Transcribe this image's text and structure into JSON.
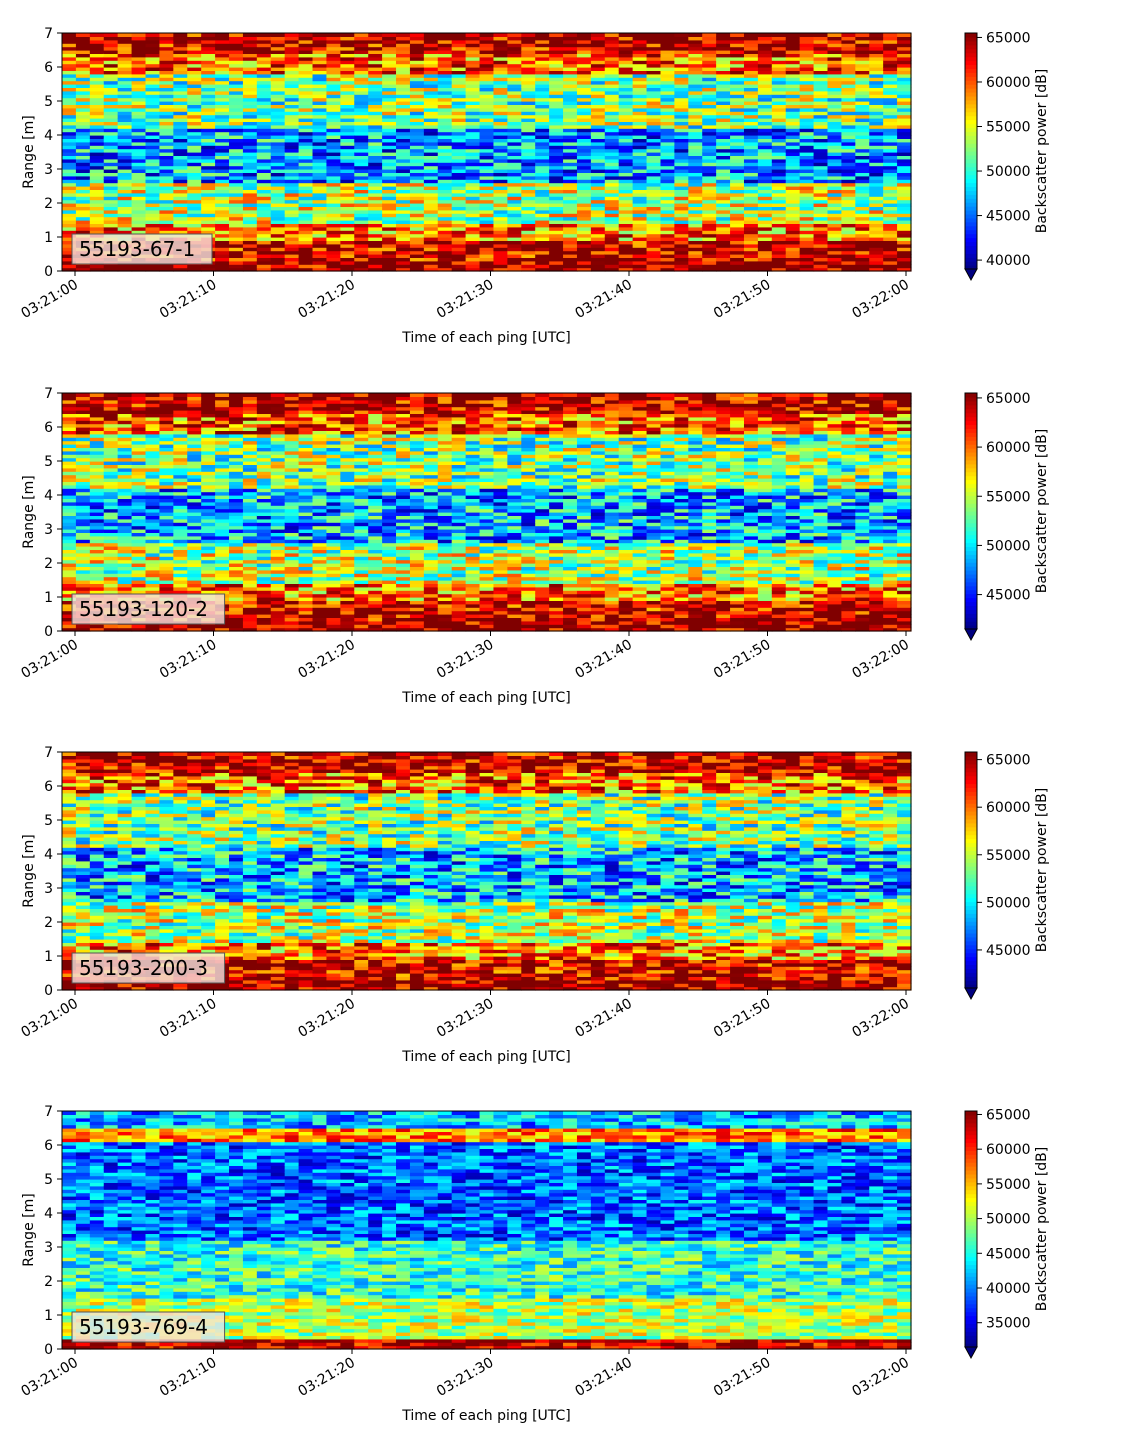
{
  "chart_data": [
    {
      "type": "heatmap",
      "label": "55193-67-1",
      "xlabel": "Time of each ping [UTC]",
      "ylabel": "Range [m]",
      "x_ticks": [
        "03:21:00",
        "03:21:10",
        "03:21:20",
        "03:21:30",
        "03:21:40",
        "03:21:50",
        "03:22:00"
      ],
      "y_ticks": [
        "0",
        "1",
        "2",
        "3",
        "4",
        "5",
        "6",
        "7"
      ],
      "ylim": [
        0,
        7
      ],
      "colorbar": {
        "label": "Backscatter power [dB]",
        "ticks": [
          "40000",
          "45000",
          "50000",
          "55000",
          "60000",
          "65000"
        ],
        "range": [
          39000,
          65500
        ],
        "extend": "min"
      }
    },
    {
      "type": "heatmap",
      "label": "55193-120-2",
      "xlabel": "Time of each ping [UTC]",
      "ylabel": "Range [m]",
      "x_ticks": [
        "03:21:00",
        "03:21:10",
        "03:21:20",
        "03:21:30",
        "03:21:40",
        "03:21:50",
        "03:22:00"
      ],
      "y_ticks": [
        "0",
        "1",
        "2",
        "3",
        "4",
        "5",
        "6",
        "7"
      ],
      "ylim": [
        0,
        7
      ],
      "colorbar": {
        "label": "Backscatter power [dB]",
        "ticks": [
          "45000",
          "50000",
          "55000",
          "60000",
          "65000"
        ],
        "range": [
          41500,
          65500
        ],
        "extend": "min"
      }
    },
    {
      "type": "heatmap",
      "label": "55193-200-3",
      "xlabel": "Time of each ping [UTC]",
      "ylabel": "Range [m]",
      "x_ticks": [
        "03:21:00",
        "03:21:10",
        "03:21:20",
        "03:21:30",
        "03:21:40",
        "03:21:50",
        "03:22:00"
      ],
      "y_ticks": [
        "0",
        "1",
        "2",
        "3",
        "4",
        "5",
        "6",
        "7"
      ],
      "ylim": [
        0,
        7
      ],
      "colorbar": {
        "label": "Backscatter power [dB]",
        "ticks": [
          "45000",
          "50000",
          "55000",
          "60000",
          "65000"
        ],
        "range": [
          41000,
          65800
        ],
        "extend": "min"
      }
    },
    {
      "type": "heatmap",
      "label": "55193-769-4",
      "xlabel": "Time of each ping [UTC]",
      "ylabel": "Range [m]",
      "x_ticks": [
        "03:21:00",
        "03:21:10",
        "03:21:20",
        "03:21:30",
        "03:21:40",
        "03:21:50",
        "03:22:00"
      ],
      "y_ticks": [
        "0",
        "1",
        "2",
        "3",
        "4",
        "5",
        "6",
        "7"
      ],
      "ylim": [
        0,
        7
      ],
      "colorbar": {
        "label": "Backscatter power [dB]",
        "ticks": [
          "35000",
          "40000",
          "45000",
          "50000",
          "55000",
          "60000",
          "65000"
        ],
        "range": [
          31500,
          65500
        ],
        "extend": "min"
      }
    }
  ]
}
